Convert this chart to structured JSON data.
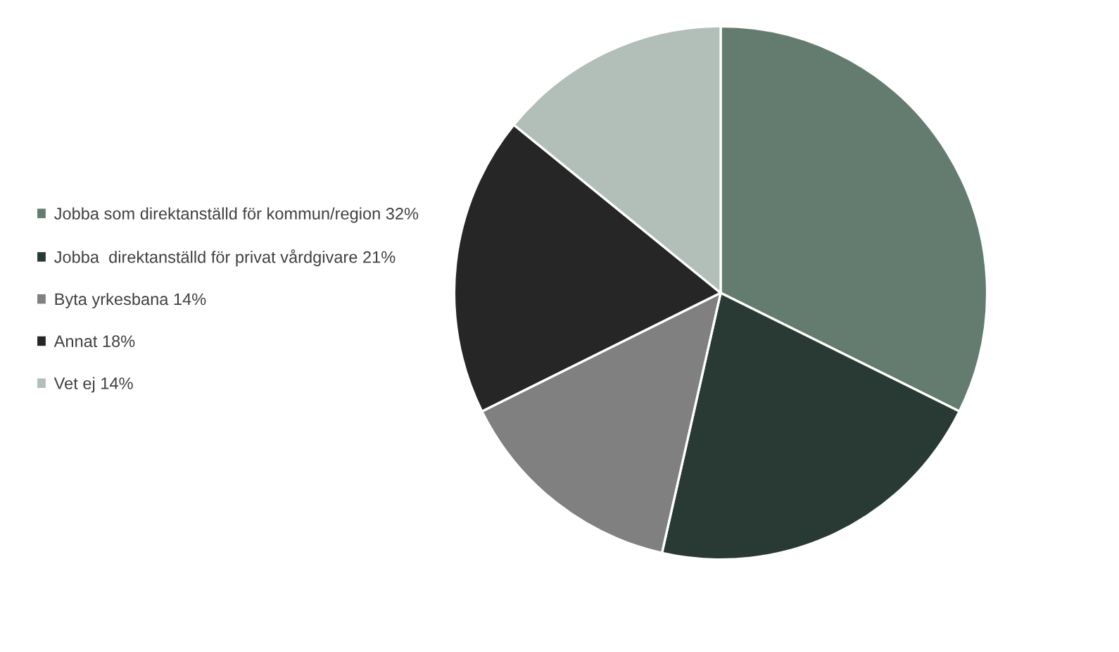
{
  "chart_data": {
    "type": "pie",
    "categories": [
      "Jobba som direktanställd för kommun/region 32%",
      "Jobba  direktanställd för privat vårdgivare 21%",
      "Byta yrkesbana 14%",
      "Annat 18%",
      "Vet ej 14%"
    ],
    "values": [
      32,
      21,
      14,
      18,
      14
    ],
    "colors": [
      "#647b6f",
      "#283a33",
      "#808080",
      "#262626",
      "#b2bfb8"
    ],
    "legend": "left"
  }
}
